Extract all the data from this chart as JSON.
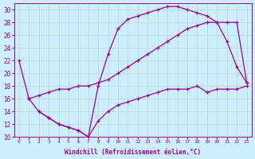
{
  "xlabel": "Windchill (Refroidissement éolien,°C)",
  "background_color": "#cceeff",
  "grid_color": "#aaddcc",
  "line_color": "#990099",
  "xlim": [
    -0.5,
    23.5
  ],
  "ylim": [
    10,
    31
  ],
  "yticks": [
    10,
    12,
    14,
    16,
    18,
    20,
    22,
    24,
    26,
    28,
    30
  ],
  "xticks": [
    0,
    1,
    2,
    3,
    4,
    5,
    6,
    7,
    8,
    9,
    10,
    11,
    12,
    13,
    14,
    15,
    16,
    17,
    18,
    19,
    20,
    21,
    22,
    23
  ],
  "series": [
    {
      "x": [
        0,
        1,
        2,
        3,
        4,
        5,
        6,
        7,
        8,
        9,
        10,
        11,
        12,
        13,
        14,
        15,
        16,
        17,
        18,
        19,
        20,
        21,
        22,
        23
      ],
      "y": [
        22,
        16,
        14,
        13,
        12,
        11.5,
        11,
        10,
        18,
        23,
        27,
        28.5,
        29,
        29.5,
        30,
        30.5,
        30.5,
        30,
        29.5,
        29,
        28,
        25,
        21,
        18.5
      ]
    },
    {
      "x": [
        1,
        2,
        3,
        4,
        5,
        6,
        7,
        8,
        9,
        10,
        11,
        12,
        13,
        14,
        15,
        16,
        17,
        18,
        19,
        20,
        21,
        22,
        23
      ],
      "y": [
        16,
        16.5,
        17,
        17.5,
        17.5,
        18,
        18,
        18.5,
        19,
        20,
        21,
        22,
        23,
        24,
        25,
        26,
        27,
        27.5,
        28,
        28,
        28,
        28,
        18.5
      ]
    },
    {
      "x": [
        2,
        3,
        4,
        5,
        6,
        7,
        8,
        9,
        10,
        11,
        12,
        13,
        14,
        15,
        16,
        17,
        18,
        19,
        20,
        21,
        22,
        23
      ],
      "y": [
        14,
        13,
        12,
        11.5,
        11,
        10,
        12.5,
        14,
        15,
        15.5,
        16,
        16.5,
        17,
        17.5,
        17.5,
        17.5,
        18,
        17,
        17.5,
        17.5,
        17.5,
        18
      ]
    }
  ]
}
